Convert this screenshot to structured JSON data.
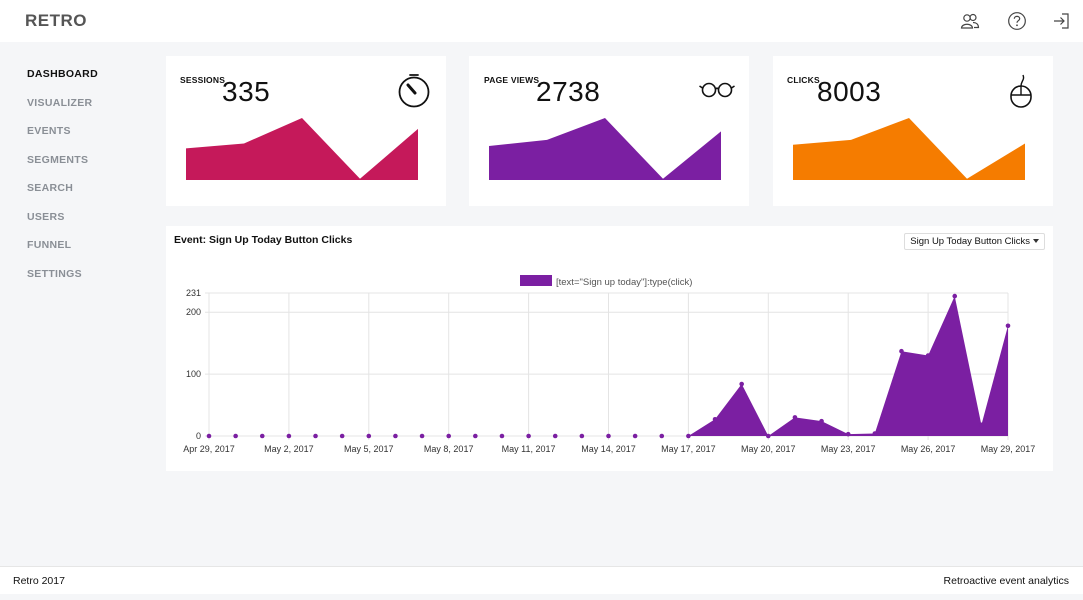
{
  "app": {
    "brand": "RETRO",
    "icons": [
      "users-icon",
      "help-icon",
      "logout-icon"
    ]
  },
  "sidebar": {
    "items": [
      {
        "label": "DASHBOARD",
        "active": true
      },
      {
        "label": "VISUALIZER",
        "active": false
      },
      {
        "label": "EVENTS",
        "active": false
      },
      {
        "label": "SEGMENTS",
        "active": false
      },
      {
        "label": "SEARCH",
        "active": false
      },
      {
        "label": "USERS",
        "active": false
      },
      {
        "label": "FUNNEL",
        "active": false
      },
      {
        "label": "SETTINGS",
        "active": false
      }
    ]
  },
  "metrics": [
    {
      "label": "SESSIONS",
      "value": "335",
      "icon": "timer-icon",
      "color": "#c5195a",
      "spark": [
        26,
        30,
        51,
        1,
        42
      ]
    },
    {
      "label": "PAGE VIEWS",
      "value": "2738",
      "icon": "glasses-icon",
      "color": "#7b1fa2",
      "spark": [
        28,
        33,
        51,
        1,
        40
      ]
    },
    {
      "label": "CLICKS",
      "value": "8003",
      "icon": "mouse-icon",
      "color": "#f57c00",
      "spark": [
        29,
        33,
        51,
        1,
        30
      ]
    }
  ],
  "event_chart": {
    "title": "Event: Sign Up Today Button Clicks",
    "select_value": "Sign Up Today Button Clicks",
    "legend": "[text=\"Sign up today\"]:type(click)",
    "color": "#7b1fa2"
  },
  "chart_data": {
    "type": "area",
    "title": "",
    "xlabel": "",
    "ylabel": "",
    "x": [
      "Apr 29, 2017",
      "Apr 30, 2017",
      "May 1, 2017",
      "May 2, 2017",
      "May 3, 2017",
      "May 4, 2017",
      "May 5, 2017",
      "May 6, 2017",
      "May 7, 2017",
      "May 8, 2017",
      "May 9, 2017",
      "May 10, 2017",
      "May 11, 2017",
      "May 12, 2017",
      "May 13, 2017",
      "May 14, 2017",
      "May 15, 2017",
      "May 16, 2017",
      "May 17, 2017",
      "May 18, 2017",
      "May 19, 2017",
      "May 20, 2017",
      "May 21, 2017",
      "May 22, 2017",
      "May 23, 2017",
      "May 24, 2017",
      "May 25, 2017",
      "May 26, 2017",
      "May 27, 2017",
      "May 28, 2017",
      "May 29, 2017"
    ],
    "x_tick_labels": [
      "Apr 29, 2017",
      "May 2, 2017",
      "May 5, 2017",
      "May 8, 2017",
      "May 11, 2017",
      "May 14, 2017",
      "May 17, 2017",
      "May 20, 2017",
      "May 23, 2017",
      "May 26, 2017",
      "May 29, 2017"
    ],
    "y_ticks": [
      0,
      100,
      200,
      231
    ],
    "ylim": [
      0,
      231
    ],
    "series": [
      {
        "name": "[text=\"Sign up today\"]:type(click)",
        "values": [
          0,
          0,
          0,
          0,
          0,
          0,
          0,
          0,
          0,
          0,
          0,
          0,
          0,
          0,
          0,
          0,
          0,
          0,
          0,
          27,
          84,
          0,
          30,
          24,
          3,
          4,
          137,
          130,
          226,
          18,
          178
        ]
      }
    ],
    "grid": true,
    "legend_position": "top"
  },
  "footer": {
    "left": "Retro 2017",
    "right": "Retroactive event analytics"
  }
}
